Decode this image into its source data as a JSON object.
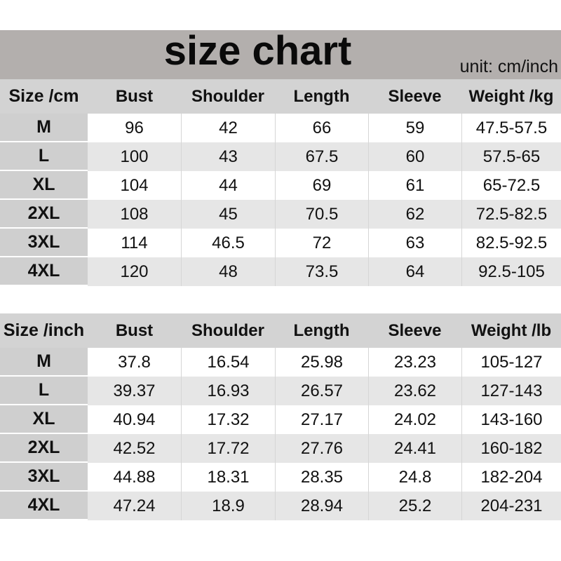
{
  "title": "size chart",
  "unit": "unit: cm/inch",
  "tables": [
    {
      "headers": [
        "Size /cm",
        "Bust",
        "Shoulder",
        "Length",
        "Sleeve",
        "Weight /kg"
      ],
      "rows": [
        [
          "M",
          "96",
          "42",
          "66",
          "59",
          "47.5-57.5"
        ],
        [
          "L",
          "100",
          "43",
          "67.5",
          "60",
          "57.5-65"
        ],
        [
          "XL",
          "104",
          "44",
          "69",
          "61",
          "65-72.5"
        ],
        [
          "2XL",
          "108",
          "45",
          "70.5",
          "62",
          "72.5-82.5"
        ],
        [
          "3XL",
          "114",
          "46.5",
          "72",
          "63",
          "82.5-92.5"
        ],
        [
          "4XL",
          "120",
          "48",
          "73.5",
          "64",
          "92.5-105"
        ]
      ]
    },
    {
      "headers": [
        "Size /inch",
        "Bust",
        "Shoulder",
        "Length",
        "Sleeve",
        "Weight /lb"
      ],
      "rows": [
        [
          "M",
          "37.8",
          "16.54",
          "25.98",
          "23.23",
          "105-127"
        ],
        [
          "L",
          "39.37",
          "16.93",
          "26.57",
          "23.62",
          "127-143"
        ],
        [
          "XL",
          "40.94",
          "17.32",
          "27.17",
          "24.02",
          "143-160"
        ],
        [
          "2XL",
          "42.52",
          "17.72",
          "27.76",
          "24.41",
          "160-182"
        ],
        [
          "3XL",
          "44.88",
          "18.31",
          "28.35",
          "24.8",
          "182-204"
        ],
        [
          "4XL",
          "47.24",
          "18.9",
          "28.94",
          "25.2",
          "204-231"
        ]
      ]
    }
  ]
}
